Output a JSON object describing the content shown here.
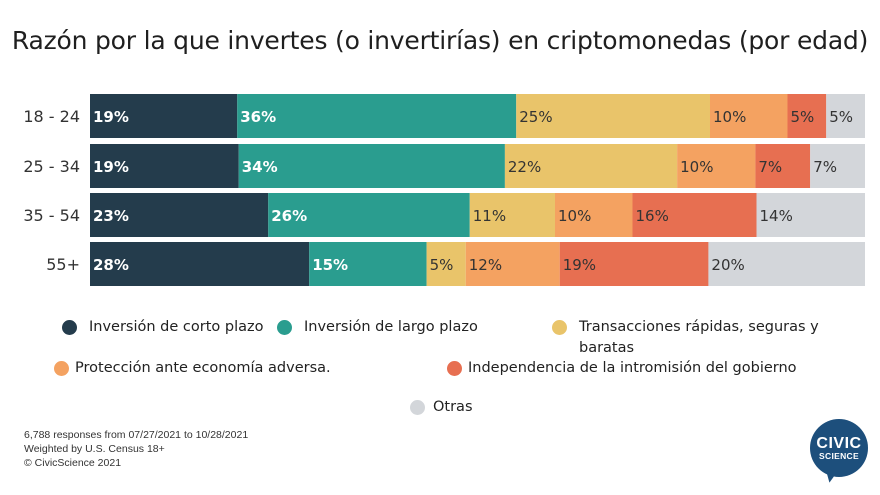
{
  "chart_data": {
    "type": "bar",
    "orientation": "horizontal",
    "stacked": true,
    "title": "Razón por la que invertes (o invertirías) en criptomonedas (por edad)",
    "categories": [
      "18 - 24",
      "25 - 34",
      "35 - 54",
      "55+"
    ],
    "series": [
      {
        "name": "Inversión de corto plazo",
        "color": "#243c4c",
        "values": [
          19,
          19,
          23,
          28
        ]
      },
      {
        "name": "Inversión de largo plazo",
        "color": "#2a9d8f",
        "values": [
          36,
          34,
          26,
          15
        ]
      },
      {
        "name": "Transacciones rápidas, seguras y baratas",
        "color": "#e9c46a",
        "values": [
          25,
          22,
          11,
          5
        ]
      },
      {
        "name": "Protección ante economía adversa.",
        "color": "#f4a261",
        "values": [
          10,
          10,
          10,
          12
        ]
      },
      {
        "name": "Independencia de la intromisión del gobierno",
        "color": "#e76f51",
        "values": [
          5,
          7,
          16,
          19
        ]
      },
      {
        "name": "Otras",
        "color": "#d3d6da",
        "values": [
          5,
          7,
          14,
          20
        ]
      }
    ],
    "value_suffix": "%",
    "xlim": [
      0,
      100
    ],
    "legend_position": "bottom"
  },
  "footer": {
    "line1": "6,788 responses from 07/27/2021 to 10/28/2021",
    "line2": "Weighted by U.S. Census 18+",
    "line3": "© CivicScience 2021"
  },
  "logo": {
    "line1": "CIVIC",
    "line2": "SCIENCE"
  }
}
